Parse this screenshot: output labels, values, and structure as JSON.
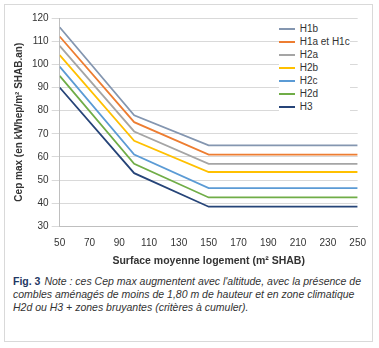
{
  "chart_data": {
    "type": "line",
    "x_label": "Surface moyenne logement (m² SHAB)",
    "y_label": "Cep max (en kWhep/m² SHAB.an)",
    "x": [
      50,
      100,
      150,
      250
    ],
    "series": [
      {
        "name": "H1b",
        "color": "#8496b0",
        "values": [
          116,
          78,
          65,
          65
        ]
      },
      {
        "name": "H1a et H1c",
        "color": "#ed7d31",
        "values": [
          112,
          75,
          61,
          61
        ]
      },
      {
        "name": "H2a",
        "color": "#a5a5a5",
        "values": [
          108,
          71,
          57,
          57
        ]
      },
      {
        "name": "H2b",
        "color": "#ffc000",
        "values": [
          104,
          67,
          53.5,
          53.5
        ]
      },
      {
        "name": "H2c",
        "color": "#5b9bd5",
        "values": [
          99,
          61,
          46.5,
          46.5
        ]
      },
      {
        "name": "H2d",
        "color": "#70ad47",
        "values": [
          95,
          57,
          42.5,
          42.5
        ]
      },
      {
        "name": "H3",
        "color": "#264478",
        "values": [
          90,
          53,
          38.5,
          38.5
        ]
      }
    ],
    "xlim": [
      50,
      250
    ],
    "xticks": [
      50,
      70,
      90,
      110,
      130,
      150,
      170,
      190,
      210,
      230,
      250
    ],
    "ylim": [
      30,
      120
    ],
    "yticks": [
      30,
      40,
      50,
      60,
      70,
      80,
      90,
      100,
      110,
      120
    ],
    "grid": "y",
    "legend": "upper right",
    "caption_label": "Fig. 3",
    "caption": "Note : ces Cep max augmentent avec l'altitude, avec la présence de combles aménagés de moins de 1,80 m de hauteur et en zone climatique H2d ou H3 + zones bruyantes (critères à cumuler)."
  }
}
